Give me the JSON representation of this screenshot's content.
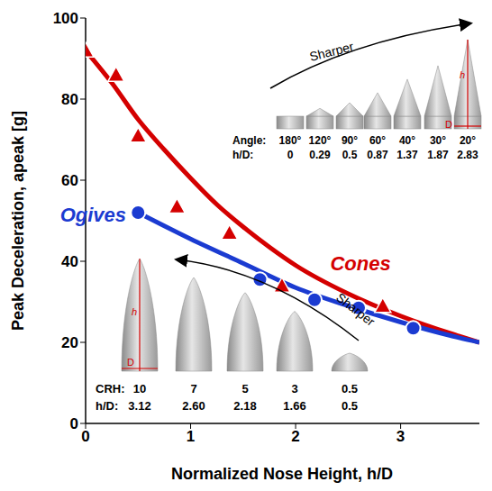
{
  "chart_data": {
    "type": "scatter",
    "x_label": "Normalized Nose Height, h/D",
    "y_label": "Peak Deceleration, apeak [g]",
    "xlim": [
      0,
      3.75
    ],
    "xticks": [
      0,
      1,
      2,
      3
    ],
    "ylim": [
      0,
      100
    ],
    "yticks": [
      0,
      20,
      40,
      60,
      80,
      100
    ],
    "grid": false,
    "series": [
      {
        "name": "Cones",
        "color": "#d40000",
        "marker": "triangle",
        "x": [
          0,
          0.29,
          0.5,
          0.87,
          1.37,
          1.87,
          2.83
        ],
        "values": [
          92,
          86,
          71,
          53.5,
          47,
          34,
          29
        ],
        "fit": {
          "x": [
            0,
            0.25,
            0.5,
            0.75,
            1,
            1.25,
            1.5,
            1.75,
            2,
            2.5,
            3,
            3.5,
            3.75
          ],
          "values": [
            92,
            84,
            75,
            67.5,
            60.5,
            54,
            48.5,
            43.5,
            39,
            32,
            26.5,
            22,
            20
          ]
        }
      },
      {
        "name": "Ogives",
        "color": "#1b3bd1",
        "marker": "circle",
        "x": [
          0.5,
          1.66,
          2.18,
          2.6,
          3.12
        ],
        "values": [
          52,
          35.5,
          30.5,
          28.5,
          23.5
        ],
        "fit": {
          "x": [
            0.5,
            1,
            1.5,
            2,
            2.5,
            3,
            3.5,
            3.75
          ],
          "values": [
            52,
            45.5,
            39.5,
            33.5,
            29,
            25,
            21.5,
            20
          ]
        }
      }
    ],
    "insets": [
      {
        "shape": "cone",
        "arrow_label": "Sharper",
        "dimension_labels": [
          "h",
          "D"
        ],
        "row_labels": [
          "Angle:",
          "h/D:"
        ],
        "columns": [
          [
            "180°",
            "0"
          ],
          [
            "120°",
            "0.29"
          ],
          [
            "90°",
            "0.5"
          ],
          [
            "60°",
            "0.87"
          ],
          [
            "40°",
            "1.37"
          ],
          [
            "30°",
            "1.87"
          ],
          [
            "20°",
            "2.83"
          ]
        ]
      },
      {
        "shape": "ogive",
        "arrow_label": "Sharper",
        "dimension_labels": [
          "h",
          "D"
        ],
        "row_labels": [
          "CRH:",
          "h/D:"
        ],
        "columns": [
          [
            "10",
            "3.12"
          ],
          [
            "7",
            "2.60"
          ],
          [
            "5",
            "2.18"
          ],
          [
            "3",
            "1.66"
          ],
          [
            "0.5",
            "0.5"
          ]
        ]
      }
    ]
  }
}
